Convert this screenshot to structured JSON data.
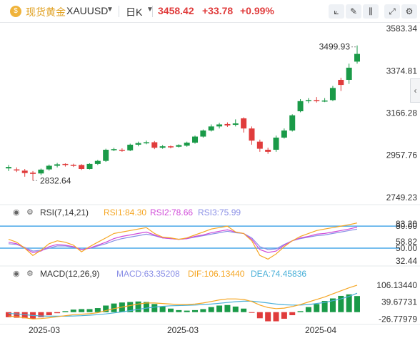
{
  "header": {
    "coin_glyph": "$",
    "title": "现货黄金",
    "symbol": "XAUUSD",
    "period": "日K",
    "price": "3458.42",
    "change": "+33.78",
    "change_pct": "+0.99%",
    "up_color": "#e03c3c",
    "down_color": "#1a9a48"
  },
  "toolbar": {
    "icons": [
      "indicator-icon",
      "draw-icon",
      "candle-type-icon",
      "fullscreen-icon",
      "settings-icon"
    ]
  },
  "price_axis": {
    "labels": [
      "3583.34",
      "3374.81",
      "3166.28",
      "2957.76",
      "2749.23"
    ],
    "high_label": "3499.93",
    "low_label": "2832.64"
  },
  "rsi": {
    "title": "RSI(7,14,21)",
    "rsi1": "RSI1:84.30",
    "rsi2": "RSI2:78.66",
    "rsi3": "RSI3:75.99",
    "axis": [
      "80.00",
      "83.20",
      "58.82",
      "50.00",
      "32.44"
    ],
    "colors": {
      "rsi1": "#f5a623",
      "rsi2": "#d04ad8",
      "rsi3": "#8a8fe6",
      "band": "#4aa8e8"
    }
  },
  "macd": {
    "title": "MACD(12,26,9)",
    "macd": "MACD:63.35208",
    "dif": "DIF:106.13440",
    "dea": "DEA:74.45836",
    "axis": [
      "106.13440",
      "39.67731",
      "-26.77979"
    ],
    "colors": {
      "macd": "#8a8fe6",
      "dif": "#f5a623",
      "dea": "#4ab0d8"
    }
  },
  "time_axis": [
    "2025-03",
    "2025-03",
    "2025-04"
  ],
  "candles": [
    [
      2893,
      2900,
      2880,
      2910
    ],
    [
      2888,
      2887,
      2875,
      2898
    ],
    [
      2882,
      2870,
      2852,
      2890
    ],
    [
      2872,
      2866,
      2832.64,
      2880
    ],
    [
      2868,
      2887,
      2860,
      2892
    ],
    [
      2888,
      2906,
      2882,
      2912
    ],
    [
      2906,
      2913,
      2898,
      2920
    ],
    [
      2915,
      2910,
      2902,
      2918
    ],
    [
      2911,
      2908,
      2900,
      2916
    ],
    [
      2910,
      2890,
      2885,
      2914
    ],
    [
      2890,
      2915,
      2888,
      2918
    ],
    [
      2915,
      2930,
      2910,
      2935
    ],
    [
      2930,
      2985,
      2925,
      2990
    ],
    [
      2985,
      2988,
      2978,
      2995
    ],
    [
      2985,
      2982,
      2975,
      2992
    ],
    [
      2982,
      3010,
      2978,
      3015
    ],
    [
      3010,
      3018,
      3002,
      3025
    ],
    [
      3018,
      3022,
      3012,
      3030
    ],
    [
      3022,
      2995,
      2988,
      3028
    ],
    [
      2995,
      3002,
      2990,
      3008
    ],
    [
      3002,
      3000,
      2992,
      3006
    ],
    [
      3000,
      3008,
      2996,
      3012
    ],
    [
      3005,
      3020,
      3000,
      3025
    ],
    [
      3020,
      3050,
      3015,
      3055
    ],
    [
      3050,
      3080,
      3045,
      3085
    ],
    [
      3080,
      3100,
      3075,
      3110
    ],
    [
      3100,
      3110,
      3090,
      3118
    ],
    [
      3112,
      3105,
      3098,
      3120
    ],
    [
      3108,
      3115,
      3100,
      3135
    ],
    [
      3140,
      3090,
      3070,
      3145
    ],
    [
      3090,
      3030,
      3010,
      3100
    ],
    [
      3025,
      2990,
      2975,
      3035
    ],
    [
      2985,
      2975,
      2965,
      2995
    ],
    [
      2985,
      3045,
      2975,
      3055
    ],
    [
      3045,
      3080,
      3040,
      3090
    ],
    [
      3080,
      3155,
      3075,
      3160
    ],
    [
      3175,
      3225,
      3170,
      3235
    ],
    [
      3225,
      3230,
      3215,
      3240
    ],
    [
      3230,
      3225,
      3218,
      3245
    ],
    [
      3225,
      3228,
      3220,
      3240
    ],
    [
      3230,
      3290,
      3225,
      3300
    ],
    [
      3330,
      3305,
      3275,
      3340
    ],
    [
      3330,
      3390,
      3310,
      3410
    ],
    [
      3420,
      3458,
      3410,
      3499.93
    ]
  ],
  "rsi_series": {
    "rsi1": [
      62,
      58,
      50,
      40,
      47,
      56,
      60,
      58,
      54,
      45,
      52,
      58,
      64,
      70,
      72,
      74,
      76,
      78,
      70,
      65,
      64,
      62,
      64,
      68,
      72,
      76,
      78,
      80,
      72,
      70,
      60,
      40,
      35,
      42,
      52,
      60,
      66,
      70,
      74,
      76,
      78,
      80,
      82,
      84.3
    ],
    "rsi2": [
      58,
      56,
      50,
      44,
      46,
      52,
      55,
      54,
      52,
      48,
      50,
      54,
      58,
      63,
      66,
      68,
      70,
      72,
      68,
      64,
      63,
      62,
      63,
      66,
      68,
      71,
      73,
      75,
      72,
      70,
      62,
      48,
      44,
      46,
      54,
      60,
      64,
      66,
      69,
      70,
      72,
      74,
      76,
      78.66
    ],
    "rsi3": [
      56,
      55,
      51,
      46,
      47,
      50,
      53,
      53,
      51,
      48,
      50,
      53,
      56,
      60,
      63,
      65,
      67,
      69,
      67,
      64,
      63,
      62,
      63,
      65,
      67,
      69,
      71,
      73,
      71,
      70,
      64,
      52,
      48,
      49,
      55,
      60,
      63,
      65,
      67,
      68,
      70,
      72,
      74,
      75.99
    ]
  },
  "macd_series": {
    "dif": [
      -15,
      -18,
      -22,
      -26.78,
      -25,
      -22,
      -18,
      -14,
      -10,
      -8,
      -6,
      -2,
      6,
      14,
      20,
      26,
      32,
      36,
      36,
      34,
      32,
      30,
      30,
      32,
      36,
      42,
      48,
      52,
      52,
      50,
      42,
      28,
      18,
      14,
      16,
      22,
      30,
      40,
      50,
      60,
      72,
      84,
      96,
      106.13
    ],
    "dea": [
      -5,
      -7,
      -10,
      -13,
      -15,
      -16,
      -16,
      -16,
      -15,
      -14,
      -12,
      -10,
      -7,
      -3,
      1,
      6,
      11,
      16,
      20,
      23,
      25,
      26,
      27,
      28,
      30,
      32,
      35,
      38,
      41,
      43,
      43,
      40,
      36,
      32,
      29,
      28,
      28,
      30,
      34,
      38,
      45,
      52,
      62,
      74.46
    ],
    "macd": [
      -20,
      -22,
      -24,
      -26,
      -20,
      -12,
      -4,
      4,
      10,
      12,
      12,
      16,
      26,
      34,
      38,
      40,
      42,
      40,
      32,
      22,
      14,
      8,
      6,
      8,
      12,
      20,
      26,
      28,
      22,
      14,
      -2,
      -24,
      -36,
      -36,
      -26,
      -12,
      4,
      20,
      32,
      44,
      54,
      64,
      70,
      63.35
    ]
  }
}
